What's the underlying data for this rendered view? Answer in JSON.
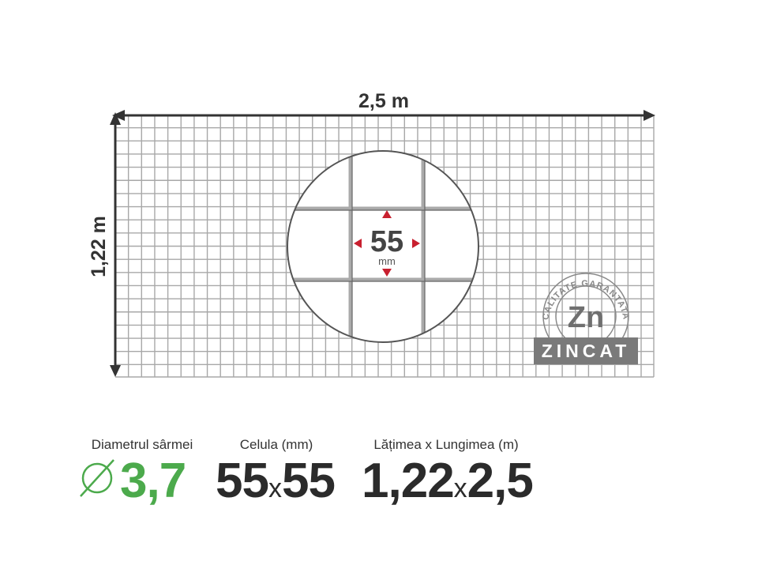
{
  "dimensions": {
    "width_label": "2,5 m",
    "height_label": "1,22 m"
  },
  "detail": {
    "cell_value": "55",
    "cell_unit": "mm"
  },
  "badge": {
    "ring_text": "CALITATE GARANTATA",
    "symbol": "Zn",
    "banner": "ZINCAT"
  },
  "specs": [
    {
      "label": "Diametrul sârmei",
      "value": "3,7",
      "prefix_icon": "diameter-icon"
    },
    {
      "label": "Celula (mm)",
      "value_a": "55",
      "sep": "x",
      "value_b": "55"
    },
    {
      "label": "Lățimea x Lungimea (m)",
      "value_a": "1,22",
      "sep": "x",
      "value_b": "2,5"
    }
  ],
  "colors": {
    "grid": "#a8a8a8",
    "arrow": "#333333",
    "accent_red": "#c8202f",
    "green": "#4caa4c",
    "badge_gray": "#7a7a7a"
  }
}
